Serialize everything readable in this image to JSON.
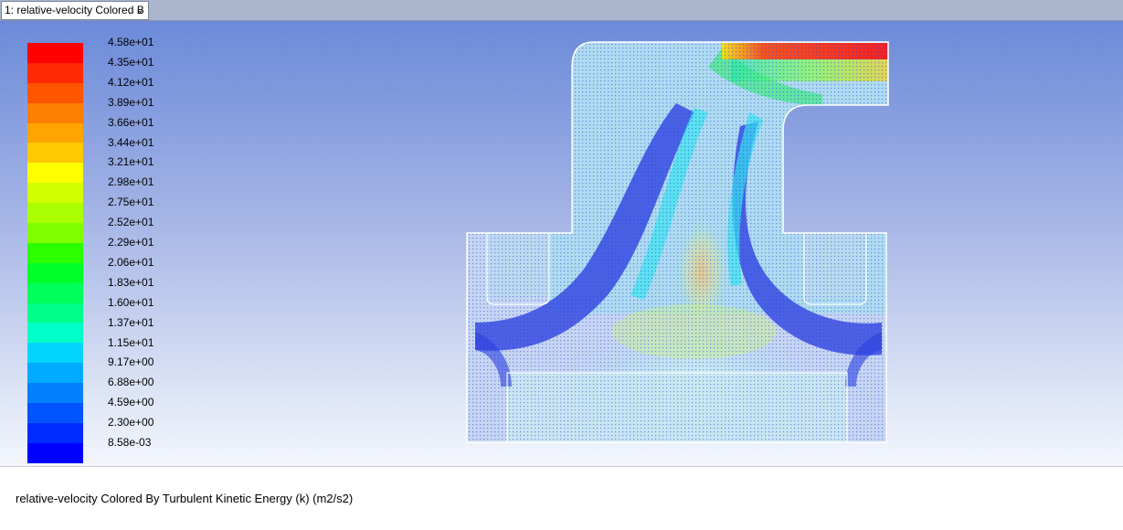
{
  "window_selector": {
    "label": "1: relative-velocity Colored B",
    "chevron_icon": "chevron-down-icon"
  },
  "legend": {
    "ticks": [
      "4.58e+01",
      "4.35e+01",
      "4.12e+01",
      "3.89e+01",
      "3.66e+01",
      "3.44e+01",
      "3.21e+01",
      "2.98e+01",
      "2.75e+01",
      "2.52e+01",
      "2.29e+01",
      "2.06e+01",
      "1.83e+01",
      "1.60e+01",
      "1.37e+01",
      "1.15e+01",
      "9.17e+00",
      "6.88e+00",
      "4.59e+00",
      "2.30e+00",
      "8.58e-03"
    ],
    "colors": [
      "#ff0000",
      "#ff2a00",
      "#ff5500",
      "#ff7f00",
      "#ffa400",
      "#ffc800",
      "#ffff00",
      "#d2ff00",
      "#aaff00",
      "#7fff00",
      "#2bff00",
      "#00ff2a",
      "#00ff5a",
      "#00ff8a",
      "#00ffc8",
      "#00d4ff",
      "#00aaff",
      "#0080ff",
      "#0055ff",
      "#002bff",
      "#0000ff"
    ]
  },
  "caption": {
    "text": "relative-velocity Colored By Turbulent Kinetic Energy (k) (m2/s2)"
  }
}
